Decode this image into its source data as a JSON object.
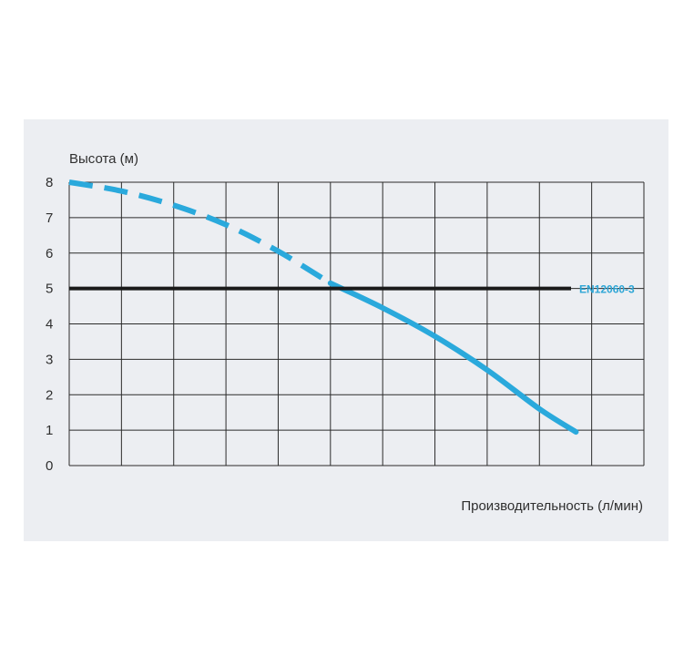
{
  "chart_data": {
    "type": "line",
    "ylabel": "Высота (м)",
    "xlabel": "Производительность (л/мин)",
    "yticks": [
      "0",
      "1",
      "2",
      "3",
      "4",
      "5",
      "6",
      "7",
      "8"
    ],
    "ylim": [
      0,
      8
    ],
    "xlim": [
      0,
      11
    ],
    "x_gridlines": 11,
    "grid": true,
    "series": [
      {
        "style": "dashed",
        "color": "#2aa9dc",
        "points": [
          [
            0,
            8.0
          ],
          [
            1,
            7.75
          ],
          [
            2,
            7.35
          ],
          [
            3,
            6.8
          ],
          [
            4,
            6.05
          ],
          [
            5,
            5.15
          ]
        ]
      },
      {
        "style": "solid",
        "color": "#2aa9dc",
        "points": [
          [
            5,
            5.15
          ],
          [
            6,
            4.45
          ],
          [
            7,
            3.65
          ],
          [
            8,
            2.7
          ],
          [
            9,
            1.6
          ],
          [
            9.7,
            0.95
          ]
        ]
      }
    ],
    "reference_line": {
      "y": 5,
      "label": "EN12060-3",
      "color": "#1a1a1a",
      "label_color": "#2ea6d6"
    }
  }
}
